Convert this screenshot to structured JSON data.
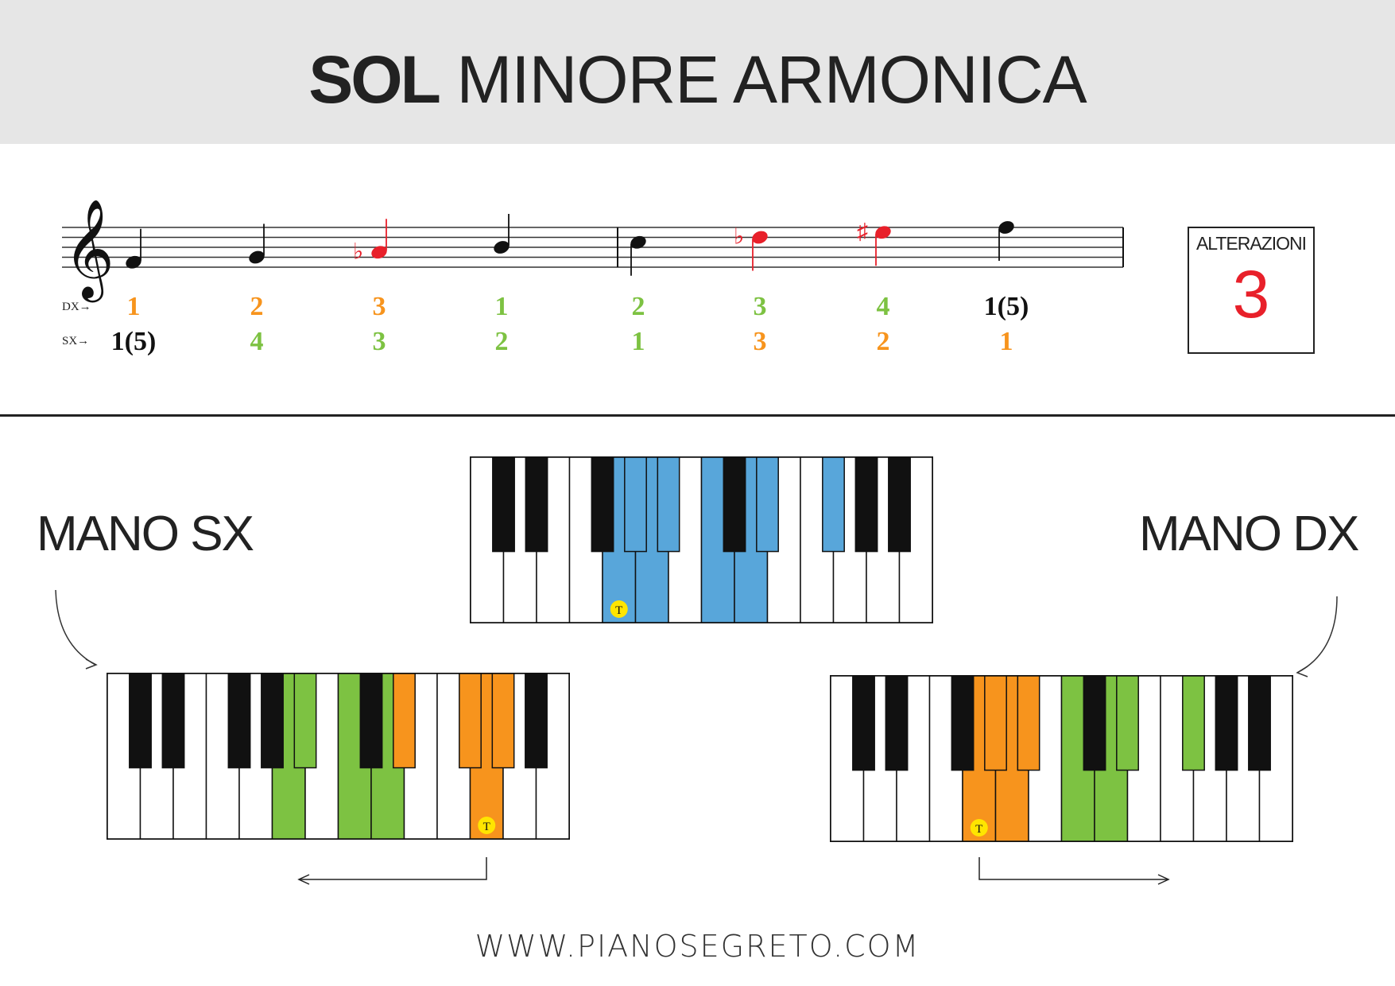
{
  "title": {
    "bold": "SOL",
    "rest": "MINORE ARMONICA"
  },
  "alterations": {
    "label": "ALTERAZIONI",
    "count": "3"
  },
  "hands": {
    "left_label": "MANO SX",
    "right_label": "MANO DX"
  },
  "fingering": {
    "dx_label": "DX→",
    "sx_label": "SX→",
    "dx": [
      {
        "text": "1",
        "color": "#f7941d"
      },
      {
        "text": "2",
        "color": "#f7941d"
      },
      {
        "text": "3",
        "color": "#f7941d"
      },
      {
        "text": "1",
        "color": "#7dc242"
      },
      {
        "text": "2",
        "color": "#7dc242"
      },
      {
        "text": "3",
        "color": "#7dc242"
      },
      {
        "text": "4",
        "color": "#7dc242"
      },
      {
        "text": "1(5)",
        "color": "#111111"
      }
    ],
    "sx": [
      {
        "text": "1(5)",
        "color": "#111111"
      },
      {
        "text": "4",
        "color": "#7dc242"
      },
      {
        "text": "3",
        "color": "#7dc242"
      },
      {
        "text": "2",
        "color": "#7dc242"
      },
      {
        "text": "1",
        "color": "#7dc242"
      },
      {
        "text": "3",
        "color": "#f7941d"
      },
      {
        "text": "2",
        "color": "#f7941d"
      },
      {
        "text": "1",
        "color": "#f7941d"
      }
    ]
  },
  "notes": [
    {
      "accidental": "",
      "color": "#111111"
    },
    {
      "accidental": "",
      "color": "#111111"
    },
    {
      "accidental": "♭",
      "color": "#e8202a"
    },
    {
      "accidental": "",
      "color": "#111111"
    },
    {
      "accidental": "",
      "color": "#111111"
    },
    {
      "accidental": "♭",
      "color": "#e8202a"
    },
    {
      "accidental": "♯",
      "color": "#e8202a"
    },
    {
      "accidental": "",
      "color": "#111111"
    }
  ],
  "tonic_marker": "T",
  "colors": {
    "scale_blue": "#58a6da",
    "finger_orange": "#f7941d",
    "finger_green": "#7dc242",
    "alteration_red": "#e8202a",
    "tonic_yellow": "#ffe500"
  },
  "footer": {
    "url": "WWW.PIANOSEGRETO.COM"
  }
}
